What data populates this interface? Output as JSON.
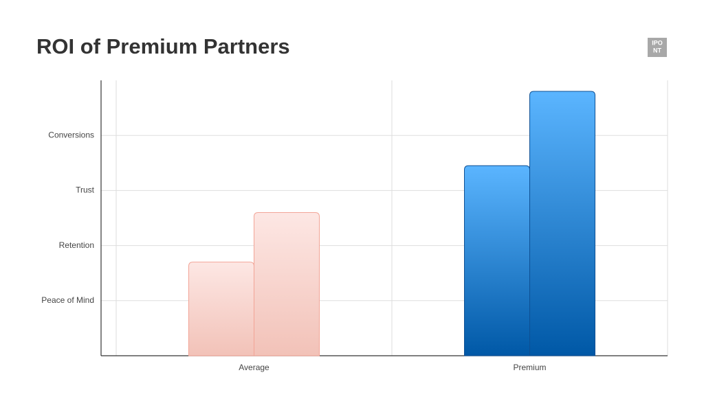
{
  "chart_data": {
    "type": "bar",
    "title": "ROI of Premium Partners",
    "categories": [
      "Average",
      "Premium"
    ],
    "category_colors": [
      [
        "#fde7e4",
        "#f2c2b8",
        "#f2a496"
      ],
      [
        "#5bb5ff",
        "#0058a6",
        "#0d4f93"
      ]
    ],
    "series": [
      {
        "values": [
          1.7,
          3.45
        ]
      },
      {
        "values": [
          2.6,
          4.8
        ]
      }
    ],
    "ylim": [
      0,
      5
    ],
    "yticks": [
      {
        "value": 1,
        "label": "Peace of Mind"
      },
      {
        "value": 2,
        "label": "Retention"
      },
      {
        "value": 3,
        "label": "Trust"
      },
      {
        "value": 4,
        "label": "Conversions"
      }
    ],
    "grid": true
  },
  "logo": [
    "IPO",
    "NT"
  ]
}
